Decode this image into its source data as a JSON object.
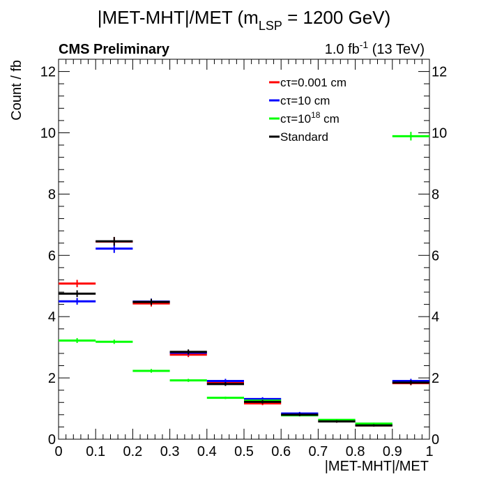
{
  "chart_data": {
    "type": "histogram",
    "title": {
      "prefix": "|MET-MHT|/MET (m",
      "subscript": "LSP",
      "suffix": " = 1200 GeV)"
    },
    "cms_label": "CMS Preliminary",
    "lumi": {
      "value": "1.0 fb",
      "sup": "-1",
      "suffix": " (13 TeV)"
    },
    "xlabel": "|MET-MHT|/MET",
    "ylabel": "Count / fb",
    "xlim": [
      0,
      1
    ],
    "ylim": [
      0,
      12.4
    ],
    "x_ticks": [
      0,
      0.1,
      0.2,
      0.3,
      0.4,
      0.5,
      0.6,
      0.7,
      0.8,
      0.9,
      1
    ],
    "x_tick_labels": [
      "0",
      "0.1",
      "0.2",
      "0.3",
      "0.4",
      "0.5",
      "0.6",
      "0.7",
      "0.8",
      "0.9",
      "1"
    ],
    "y_ticks": [
      0,
      2,
      4,
      6,
      8,
      10,
      12
    ],
    "y_tick_labels": [
      "0",
      "2",
      "4",
      "6",
      "8",
      "10",
      "12"
    ],
    "bin_edges": [
      0,
      0.1,
      0.2,
      0.3,
      0.4,
      0.5,
      0.6,
      0.7,
      0.8,
      0.9,
      1.0
    ],
    "legend_position": "top-right",
    "series": [
      {
        "name_parts": [
          "cτ=0.001 cm"
        ],
        "color": "#ff0000",
        "values": [
          5.08,
          6.45,
          4.43,
          2.76,
          1.85,
          1.17,
          0.8,
          0.58,
          0.45,
          1.83
        ],
        "errors": [
          0.12,
          0.15,
          0.1,
          0.08,
          0.07,
          0.06,
          0.05,
          0.04,
          0.04,
          0.07
        ]
      },
      {
        "name_parts": [
          "cτ=10 cm"
        ],
        "color": "#0000ff",
        "values": [
          4.5,
          6.22,
          4.49,
          2.82,
          1.9,
          1.31,
          0.84,
          0.62,
          0.47,
          1.9
        ],
        "errors": [
          0.11,
          0.14,
          0.1,
          0.08,
          0.07,
          0.06,
          0.05,
          0.04,
          0.04,
          0.07
        ]
      },
      {
        "name_parts": [
          "cτ=10",
          "18",
          " cm"
        ],
        "color": "#00ff00",
        "values": [
          3.22,
          3.18,
          2.23,
          1.92,
          1.35,
          1.26,
          0.78,
          0.63,
          0.51,
          9.89
        ],
        "errors": [
          0.08,
          0.07,
          0.06,
          0.05,
          0.04,
          0.04,
          0.03,
          0.03,
          0.03,
          0.14
        ]
      },
      {
        "name_parts": [
          "Standard"
        ],
        "color": "#000000",
        "values": [
          4.75,
          6.46,
          4.48,
          2.85,
          1.8,
          1.22,
          0.8,
          0.58,
          0.45,
          1.85
        ],
        "errors": [
          0.11,
          0.14,
          0.1,
          0.08,
          0.06,
          0.06,
          0.05,
          0.04,
          0.04,
          0.07
        ]
      }
    ]
  }
}
